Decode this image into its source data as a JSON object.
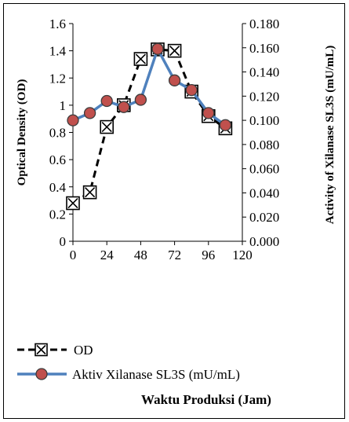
{
  "chart_data": {
    "type": "line",
    "title": "",
    "xlabel": "Waktu Produksi (Jam)",
    "ylabel": "Optical Density (OD)",
    "y2label": "Activity of Xilanase SL3S (mU/mL)",
    "xlim": [
      0,
      120
    ],
    "ylim": [
      0,
      1.6
    ],
    "y2lim": [
      0,
      0.18
    ],
    "x_ticks": [
      "0",
      "24",
      "48",
      "72",
      "96",
      "120"
    ],
    "y_ticks": [
      "0",
      "0.2",
      "0.4",
      "0.6",
      "0.8",
      "1",
      "1.2",
      "1.4",
      "1.6"
    ],
    "y2_ticks": [
      "0.000",
      "0.020",
      "0.040",
      "0.060",
      "0.080",
      "0.100",
      "0.120",
      "0.140",
      "0.160",
      "0.180"
    ],
    "legend_position": "bottom-left",
    "grid": false,
    "series": [
      {
        "name": "OD",
        "axis": "left",
        "color": "#000000",
        "style": "dashed",
        "marker": "square-x",
        "x": [
          0,
          12,
          24,
          36,
          48,
          60,
          72,
          84,
          96,
          108
        ],
        "values": [
          0.28,
          0.36,
          0.84,
          1.0,
          1.34,
          1.41,
          1.4,
          1.1,
          0.92,
          0.83
        ]
      },
      {
        "name": "Aktiv Xilanase SL3S (mU/mL)",
        "axis": "right",
        "color": "#4f81bd",
        "marker_color": "#c0504d",
        "style": "solid",
        "marker": "circle",
        "x": [
          0,
          12,
          24,
          36,
          48,
          60,
          72,
          84,
          96,
          108
        ],
        "values": [
          0.1,
          0.106,
          0.116,
          0.111,
          0.117,
          0.159,
          0.133,
          0.125,
          0.106,
          0.096
        ]
      }
    ]
  }
}
